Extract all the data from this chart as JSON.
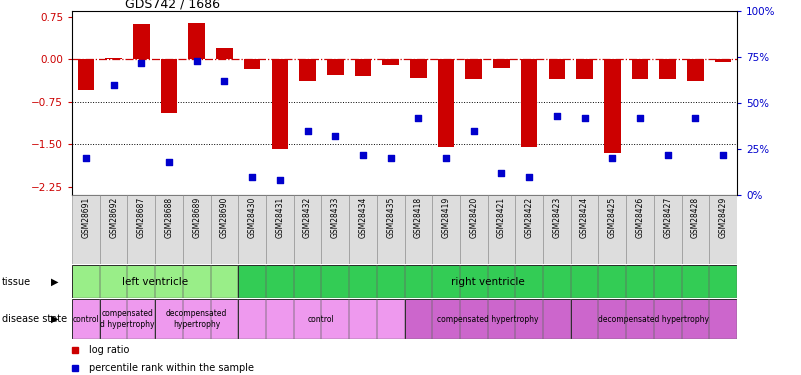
{
  "title": "GDS742 / 1686",
  "samples": [
    "GSM28691",
    "GSM28692",
    "GSM28687",
    "GSM28688",
    "GSM28689",
    "GSM28690",
    "GSM28430",
    "GSM28431",
    "GSM28432",
    "GSM28433",
    "GSM28434",
    "GSM28435",
    "GSM28418",
    "GSM28419",
    "GSM28420",
    "GSM28421",
    "GSM28422",
    "GSM28423",
    "GSM28424",
    "GSM28425",
    "GSM28426",
    "GSM28427",
    "GSM28428",
    "GSM28429"
  ],
  "log_ratio": [
    -0.55,
    0.02,
    0.62,
    -0.95,
    0.65,
    0.2,
    -0.18,
    -1.58,
    -0.38,
    -0.28,
    -0.3,
    -0.1,
    -0.33,
    -1.55,
    -0.35,
    -0.15,
    -1.55,
    -0.35,
    -0.35,
    -1.65,
    -0.35,
    -0.35,
    -0.38,
    -0.05
  ],
  "percentile": [
    20,
    60,
    72,
    18,
    73,
    62,
    10,
    8,
    35,
    32,
    22,
    20,
    42,
    20,
    35,
    12,
    10,
    43,
    42,
    20,
    42,
    22,
    42,
    22
  ],
  "bar_color": "#cc0000",
  "point_color": "#0000cc",
  "ylim_left": [
    -2.4,
    0.85
  ],
  "ylim_right": [
    0,
    100
  ],
  "yticks_left": [
    0.75,
    0.0,
    -0.75,
    -1.5,
    -2.25
  ],
  "yticks_right": [
    0,
    25,
    50,
    75,
    100
  ],
  "hline_y": 0.0,
  "dotted_lines": [
    -0.75,
    -1.5
  ],
  "tissue_groups": [
    {
      "label": "left ventricle",
      "start": 0,
      "end": 5,
      "color": "#99ee88"
    },
    {
      "label": "right ventricle",
      "start": 6,
      "end": 23,
      "color": "#33cc55"
    }
  ],
  "disease_groups": [
    {
      "label": "control",
      "start": 0,
      "end": 0,
      "color": "#ee99ee"
    },
    {
      "label": "compensated\nd hypertrophy",
      "start": 1,
      "end": 2,
      "color": "#ee99ee"
    },
    {
      "label": "decompensated\nhypertrophy",
      "start": 3,
      "end": 5,
      "color": "#ee99ee"
    },
    {
      "label": "control",
      "start": 6,
      "end": 11,
      "color": "#ee99ee"
    },
    {
      "label": "compensated hypertrophy",
      "start": 12,
      "end": 17,
      "color": "#cc66cc"
    },
    {
      "label": "decompensated hypertrophy",
      "start": 18,
      "end": 23,
      "color": "#cc66cc"
    }
  ]
}
